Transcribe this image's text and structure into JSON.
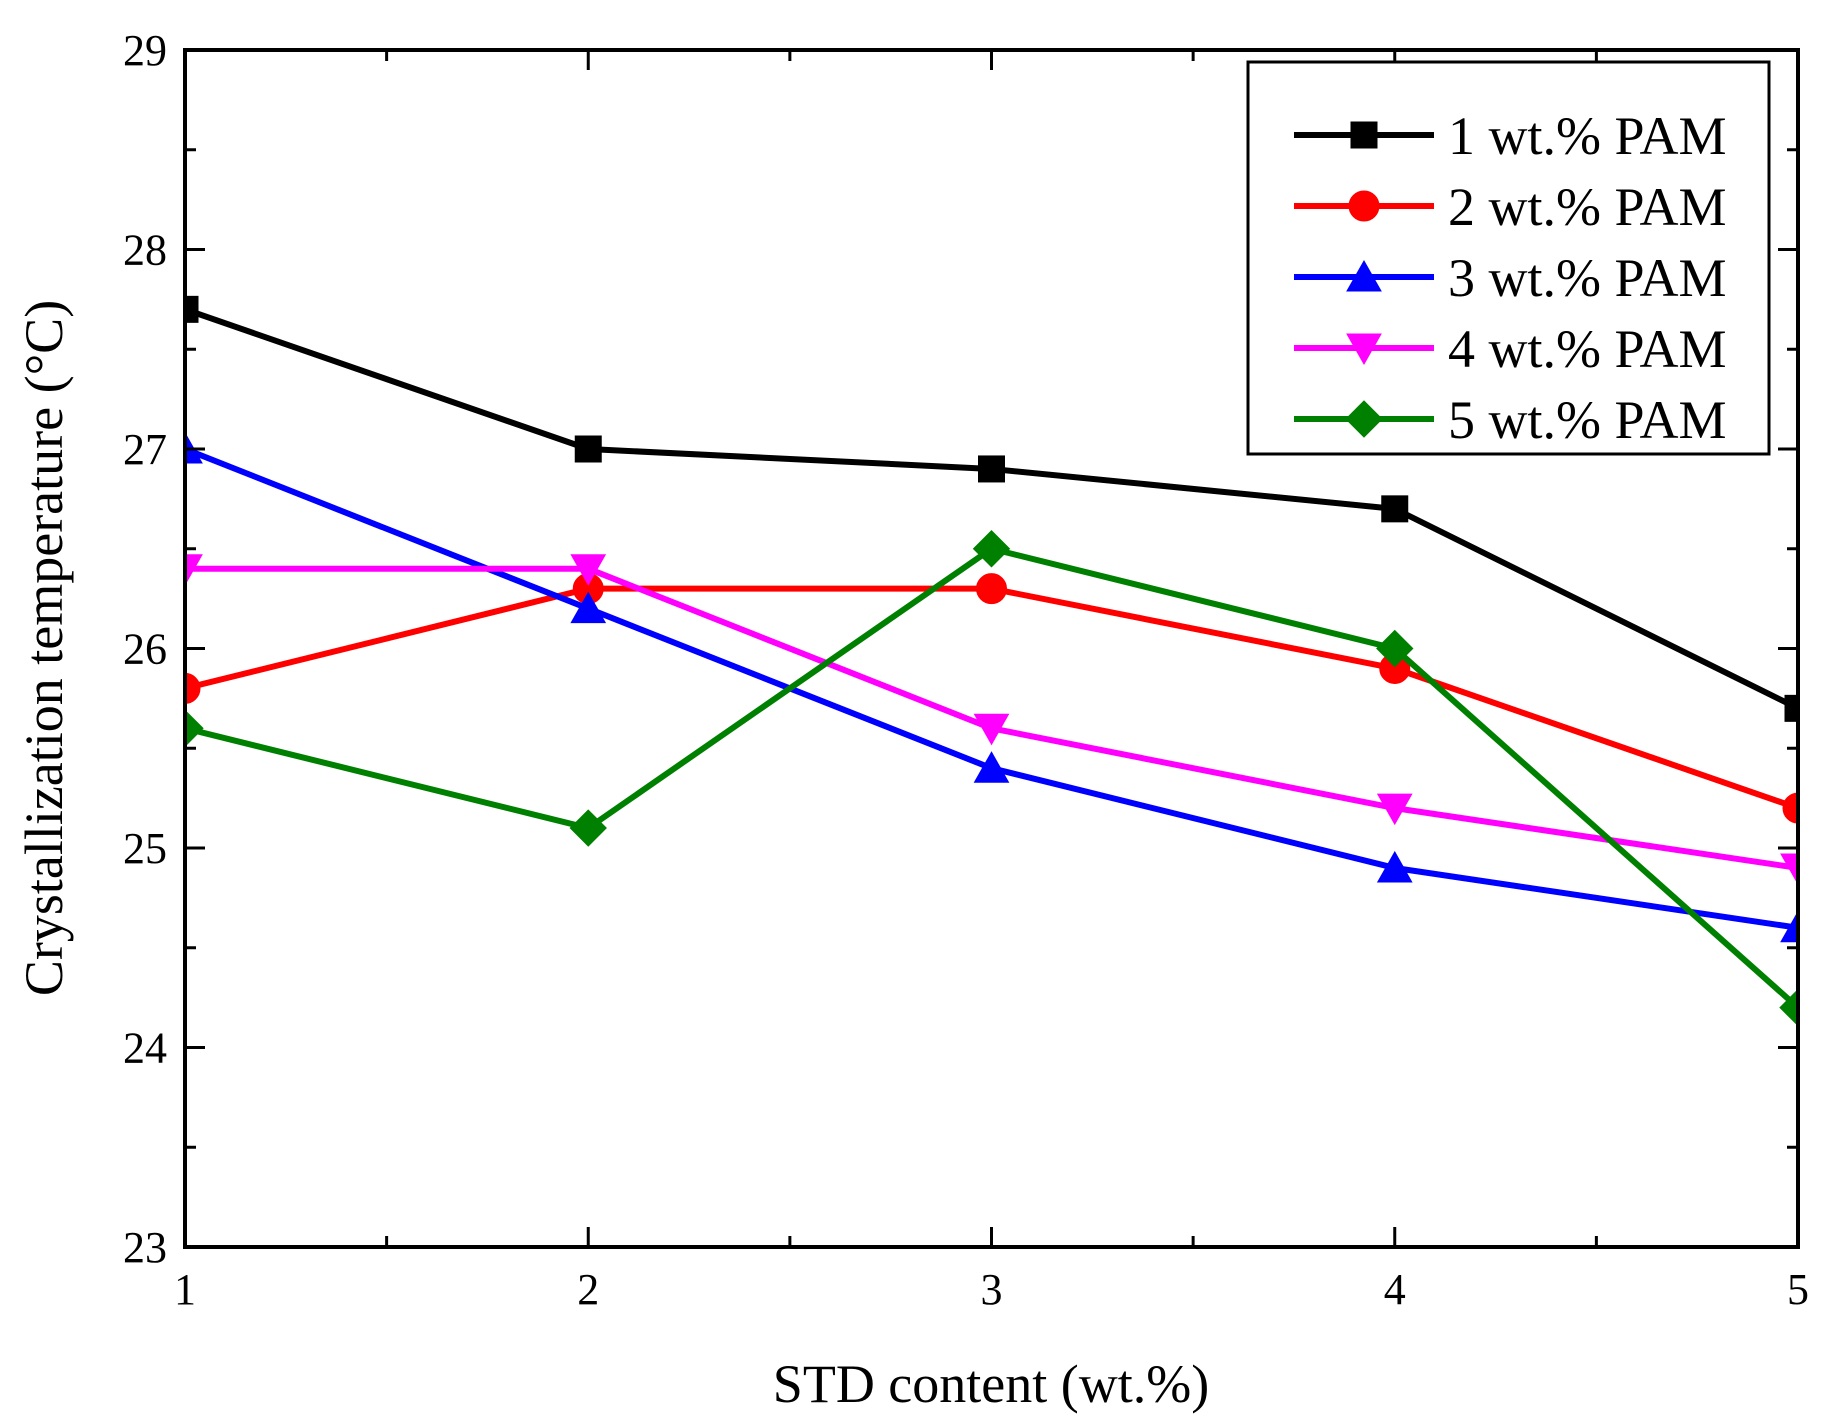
{
  "chart_data": {
    "type": "line",
    "title": "",
    "xlabel": "STD content (wt.%)",
    "ylabel": "Crystallization temperature (°C)",
    "xlim": [
      1,
      5
    ],
    "ylim": [
      23,
      29
    ],
    "xticks": [
      1,
      2,
      3,
      4,
      5
    ],
    "yticks": [
      23,
      24,
      25,
      26,
      27,
      28,
      29
    ],
    "x_tick_labels": [
      "1",
      "2",
      "3",
      "4",
      "5"
    ],
    "y_tick_labels": [
      "23",
      "24",
      "25",
      "26",
      "27",
      "28",
      "29"
    ],
    "grid": false,
    "legend_position": "top-right",
    "x": [
      1,
      2,
      3,
      4,
      5
    ],
    "series": [
      {
        "name": "1 wt.% PAM",
        "color": "#000000",
        "marker": "square",
        "values": [
          27.7,
          27.0,
          26.9,
          26.7,
          25.7
        ]
      },
      {
        "name": "2 wt.% PAM",
        "color": "#ff0000",
        "marker": "circle",
        "values": [
          25.8,
          26.3,
          26.3,
          25.9,
          25.2
        ]
      },
      {
        "name": "3 wt.% PAM",
        "color": "#0000ff",
        "marker": "triangle-up",
        "values": [
          27.0,
          26.2,
          25.4,
          24.9,
          24.6
        ]
      },
      {
        "name": "4 wt.% PAM",
        "color": "#ff00ff",
        "marker": "triangle-down",
        "values": [
          26.4,
          26.4,
          25.6,
          25.2,
          24.9
        ]
      },
      {
        "name": "5 wt.% PAM",
        "color": "#008000",
        "marker": "diamond",
        "values": [
          25.6,
          25.1,
          26.5,
          26.0,
          24.2
        ]
      }
    ]
  }
}
